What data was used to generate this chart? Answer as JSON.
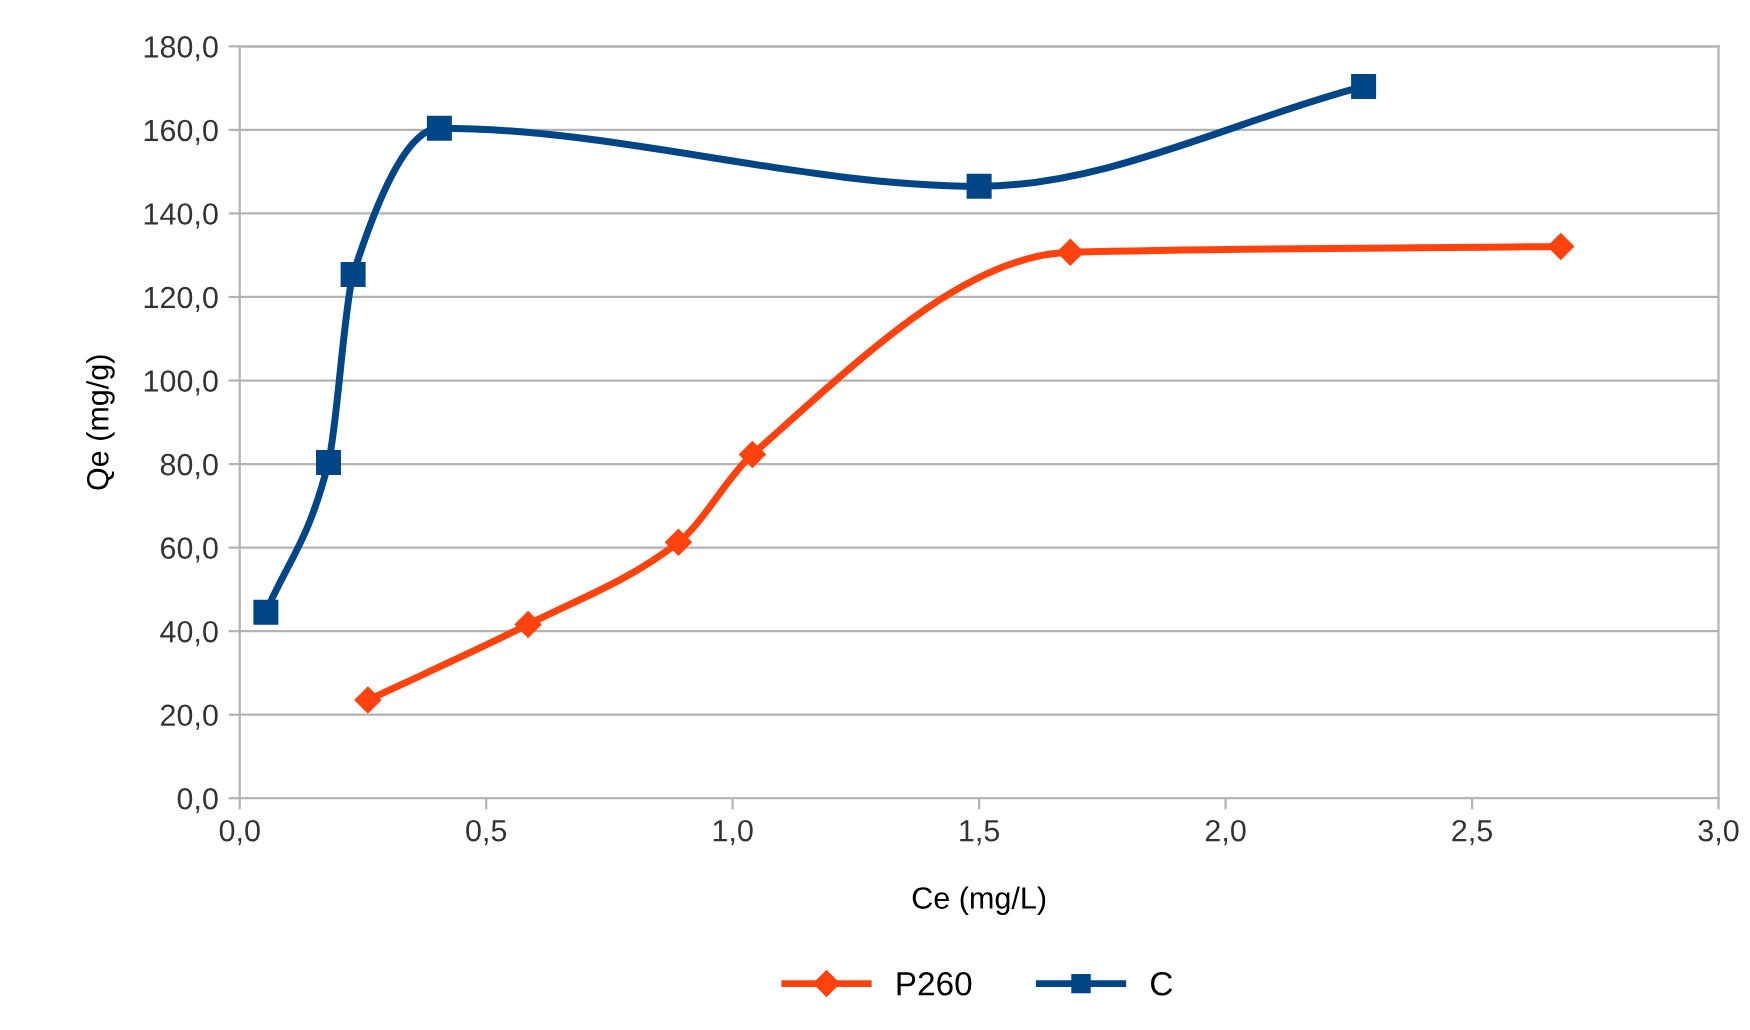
{
  "chart_data": {
    "type": "line",
    "xlabel": "Ce (mg/L)",
    "ylabel": "Qe (mg/g)",
    "series": [
      {
        "name": "P260",
        "color": "#ff420e",
        "marker": "diamond",
        "x": [
          0.26,
          0.585,
          0.89,
          1.04,
          1.685,
          2.68
        ],
        "values": [
          23.5,
          41.6,
          61.3,
          82.3,
          130.7,
          132.1
        ]
      },
      {
        "name": "C",
        "color": "#004586",
        "marker": "square",
        "x": [
          0.053,
          0.18,
          0.23,
          0.405,
          1.5,
          2.28
        ],
        "values": [
          44.5,
          80.4,
          125.4,
          160.4,
          146.5,
          170.4
        ]
      }
    ],
    "xlim": [
      0,
      3
    ],
    "ylim": [
      0,
      180
    ],
    "xticks": [
      {
        "value": 0,
        "label": "0,0"
      },
      {
        "value": 0.5,
        "label": "0,5"
      },
      {
        "value": 1,
        "label": "1,0"
      },
      {
        "value": 1.5,
        "label": "1,5"
      },
      {
        "value": 2,
        "label": "2,0"
      },
      {
        "value": 2.5,
        "label": "2,5"
      },
      {
        "value": 3,
        "label": "3,0"
      }
    ],
    "yticks": [
      {
        "value": 0,
        "label": "0,0"
      },
      {
        "value": 20,
        "label": "20,0"
      },
      {
        "value": 40,
        "label": "40,0"
      },
      {
        "value": 60,
        "label": "60,0"
      },
      {
        "value": 80,
        "label": "80,0"
      },
      {
        "value": 100,
        "label": "100,0"
      },
      {
        "value": 120,
        "label": "120,0"
      },
      {
        "value": 140,
        "label": "140,0"
      },
      {
        "value": 160,
        "label": "160,0"
      },
      {
        "value": 180,
        "label": "180,0"
      }
    ],
    "grid": "y",
    "legend": "bottom",
    "line_style": "solid"
  }
}
